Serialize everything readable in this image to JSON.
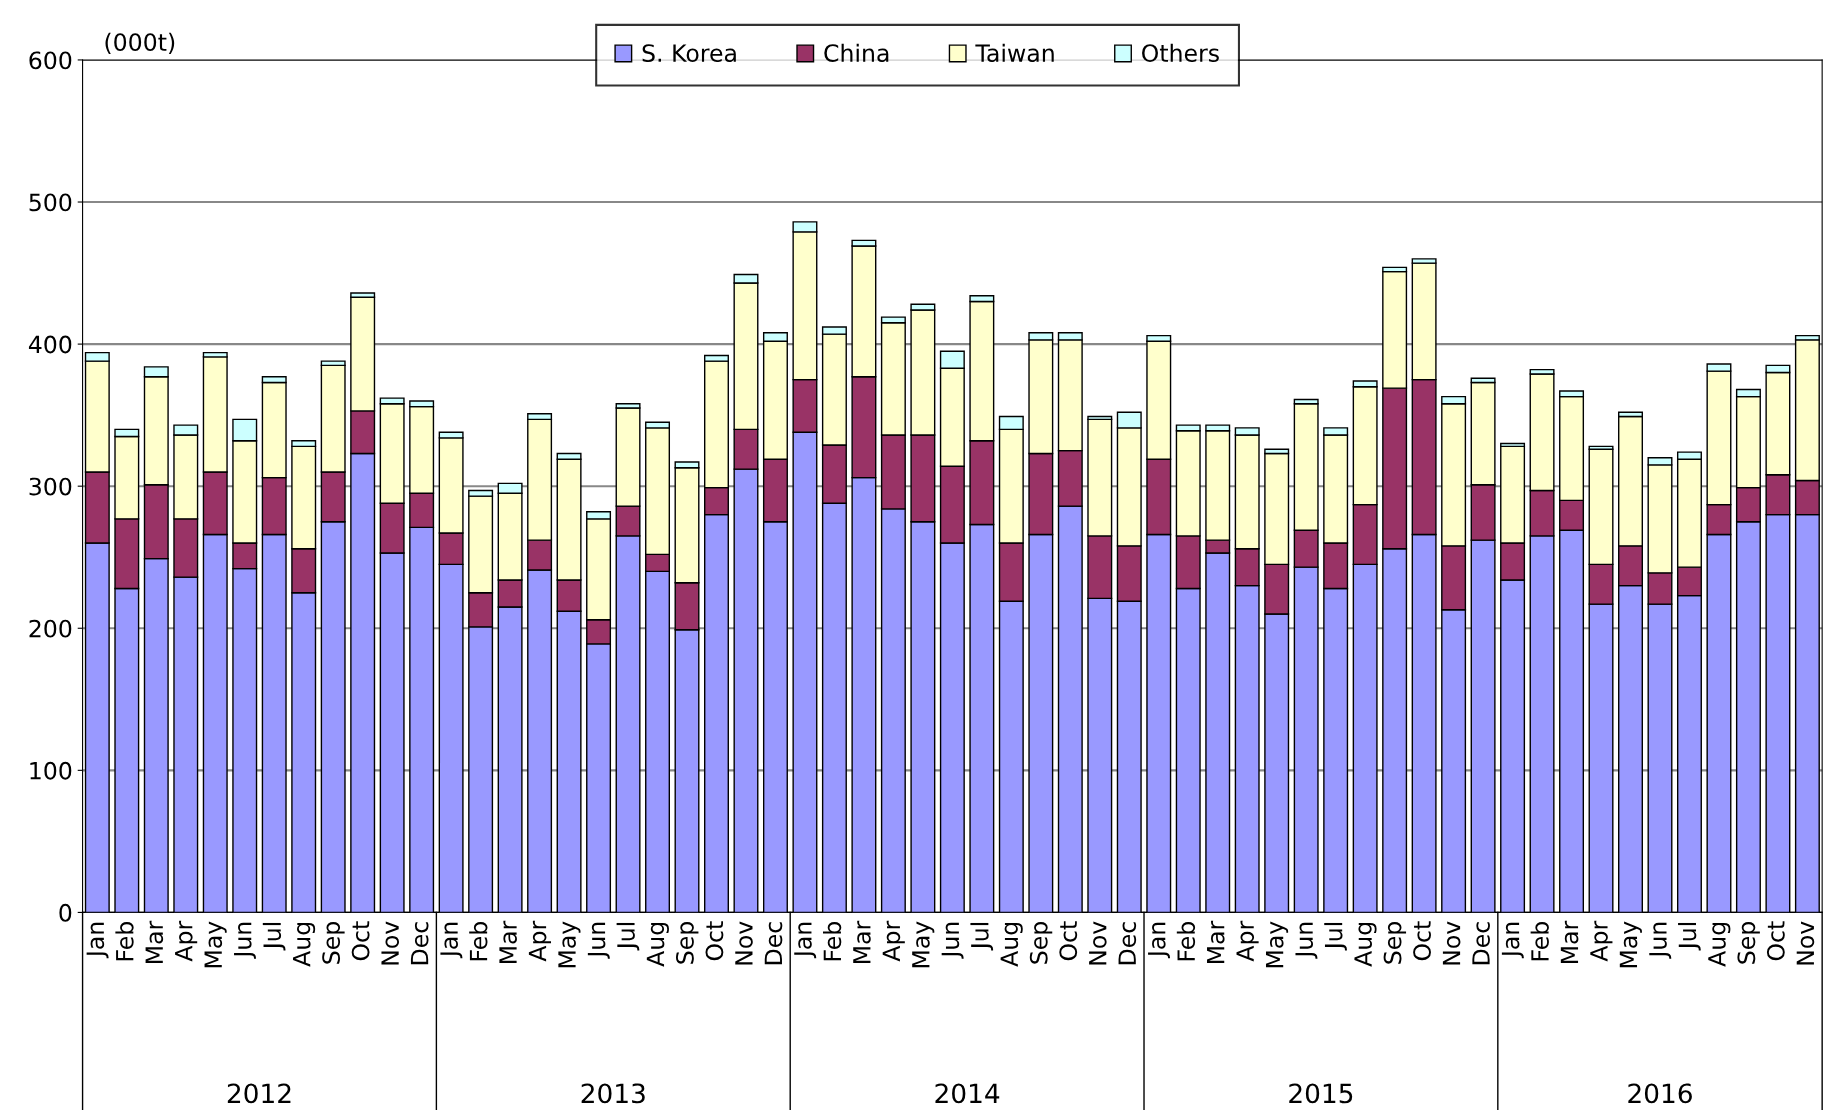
{
  "chart_data": {
    "type": "bar",
    "stacked": true,
    "ylabel": "(000t)",
    "categories": [
      "Jan",
      "Feb",
      "Mar",
      "Apr",
      "May",
      "Jun",
      "Jul",
      "Aug",
      "Sep",
      "Oct",
      "Nov",
      "Dec",
      "Jan",
      "Feb",
      "Mar",
      "Apr",
      "May",
      "Jun",
      "Jul",
      "Aug",
      "Sep",
      "Oct",
      "Nov",
      "Dec",
      "Jan",
      "Feb",
      "Mar",
      "Apr",
      "May",
      "Jun",
      "Jul",
      "Aug",
      "Sep",
      "Oct",
      "Nov",
      "Dec",
      "Jan",
      "Feb",
      "Mar",
      "Apr",
      "May",
      "Jun",
      "Jul",
      "Aug",
      "Sep",
      "Oct",
      "Nov",
      "Dec",
      "Jan",
      "Feb",
      "Mar",
      "Apr",
      "May",
      "Jun",
      "Jul",
      "Aug",
      "Sep",
      "Oct",
      "Nov"
    ],
    "series": [
      {
        "name": "S. Korea",
        "color": "#9999ff",
        "values": [
          260,
          228,
          249,
          236,
          266,
          242,
          266,
          225,
          275,
          323,
          253,
          271,
          245,
          201,
          215,
          241,
          212,
          189,
          265,
          240,
          199,
          280,
          312,
          275,
          338,
          288,
          306,
          284,
          275,
          260,
          273,
          219,
          266,
          286,
          221,
          219,
          266,
          228,
          253,
          230,
          210,
          243,
          228,
          245,
          256,
          266,
          213,
          262,
          234,
          265,
          269,
          217,
          230,
          217,
          223,
          266,
          275,
          280,
          280
        ]
      },
      {
        "name": "China",
        "color": "#993366",
        "values": [
          50,
          49,
          52,
          41,
          44,
          18,
          40,
          31,
          35,
          30,
          35,
          24,
          22,
          24,
          19,
          21,
          22,
          17,
          21,
          12,
          33,
          19,
          28,
          44,
          37,
          41,
          71,
          52,
          61,
          54,
          59,
          41,
          57,
          39,
          44,
          39,
          53,
          37,
          9,
          26,
          35,
          26,
          32,
          42,
          113,
          109,
          45,
          39,
          26,
          32,
          21,
          28,
          28,
          22,
          20,
          21,
          24,
          28,
          24
        ]
      },
      {
        "name": "Taiwan",
        "color": "#ffffcc",
        "values": [
          78,
          58,
          76,
          59,
          81,
          72,
          67,
          72,
          75,
          80,
          70,
          61,
          67,
          68,
          61,
          85,
          85,
          71,
          69,
          89,
          81,
          89,
          103,
          83,
          104,
          78,
          92,
          79,
          88,
          69,
          98,
          80,
          80,
          78,
          82,
          83,
          83,
          74,
          77,
          80,
          78,
          89,
          76,
          83,
          82,
          82,
          100,
          72,
          68,
          82,
          73,
          81,
          91,
          76,
          76,
          94,
          64,
          72,
          99
        ]
      },
      {
        "name": "Others",
        "color": "#ccffff",
        "values": [
          6,
          5,
          7,
          7,
          3,
          15,
          4,
          4,
          3,
          3,
          4,
          4,
          4,
          4,
          7,
          4,
          4,
          5,
          3,
          4,
          4,
          4,
          6,
          6,
          7,
          5,
          4,
          4,
          4,
          12,
          4,
          9,
          5,
          5,
          2,
          11,
          4,
          4,
          4,
          5,
          3,
          3,
          5,
          4,
          3,
          3,
          5,
          3,
          2,
          3,
          4,
          2,
          3,
          5,
          5,
          5,
          5,
          5,
          3
        ]
      }
    ],
    "ylim": [
      0,
      600
    ],
    "yticks": [
      0,
      100,
      200,
      300,
      400,
      500,
      600
    ],
    "grid": "y",
    "legend": "top",
    "annotations": [
      "2012",
      "2013",
      "2014",
      "2015",
      "2016"
    ]
  }
}
